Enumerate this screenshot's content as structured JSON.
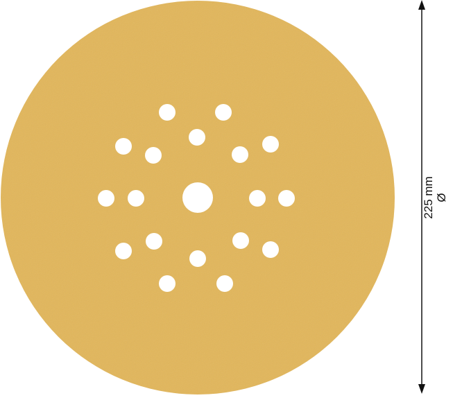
{
  "product": {
    "disc_color": "#e2b65a",
    "hole_color": "#ffffff",
    "hole_count": 19
  },
  "dimension": {
    "value_label": "225 mm",
    "symbol": "Ø",
    "line_color": "#111111"
  }
}
